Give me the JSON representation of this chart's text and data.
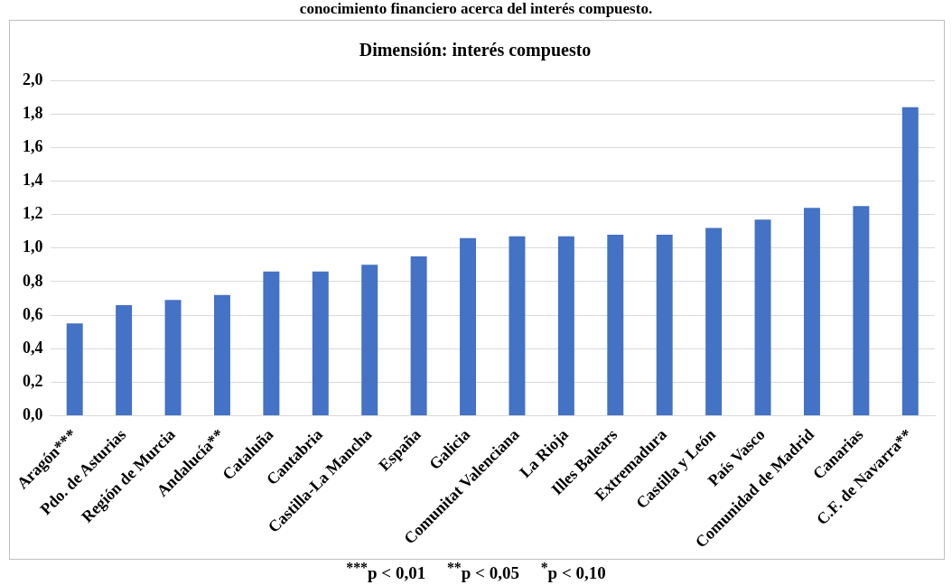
{
  "chart_data": {
    "type": "bar",
    "title": "conocimiento financiero acerca del interés compuesto.",
    "subtitle": "Dimensión: interés compuesto",
    "categories": [
      "Aragón***",
      "Pdo. de Asturias",
      "Región de Murcia",
      "Andalucía**",
      "Cataluña",
      "Cantabria",
      "Castilla-La Mancha",
      "España",
      "Galicia",
      "Comunitat Valenciana",
      "La Rioja",
      "Illes Balears",
      "Extremadura",
      "Castilla y León",
      "País Vasco",
      "Comunidad de Madrid",
      "Canarias",
      "C.F. de Navarra**"
    ],
    "values": [
      0.55,
      0.66,
      0.69,
      0.72,
      0.86,
      0.86,
      0.9,
      0.95,
      1.06,
      1.07,
      1.07,
      1.08,
      1.08,
      1.12,
      1.17,
      1.24,
      1.25,
      1.84
    ],
    "color": "#4472c4",
    "ylim": [
      0,
      2
    ],
    "yticks": [
      {
        "value": 0,
        "label": "0,0"
      },
      {
        "value": 0.2,
        "label": "0,2"
      },
      {
        "value": 0.4,
        "label": "0,4"
      },
      {
        "value": 0.6,
        "label": "0,6"
      },
      {
        "value": 0.8,
        "label": "0,8"
      },
      {
        "value": 1,
        "label": "1,0"
      },
      {
        "value": 1.2,
        "label": "1,2"
      },
      {
        "value": 1.4,
        "label": "1,4"
      },
      {
        "value": 1.6,
        "label": "1,6"
      },
      {
        "value": 1.8,
        "label": "1,8"
      },
      {
        "value": 2,
        "label": "2,0"
      }
    ],
    "grid": "y",
    "legend": false,
    "annotations": [
      "$^{***}$p < 0,01     $^{**}$p < 0,05     $^{*}$p < 0,10"
    ]
  }
}
